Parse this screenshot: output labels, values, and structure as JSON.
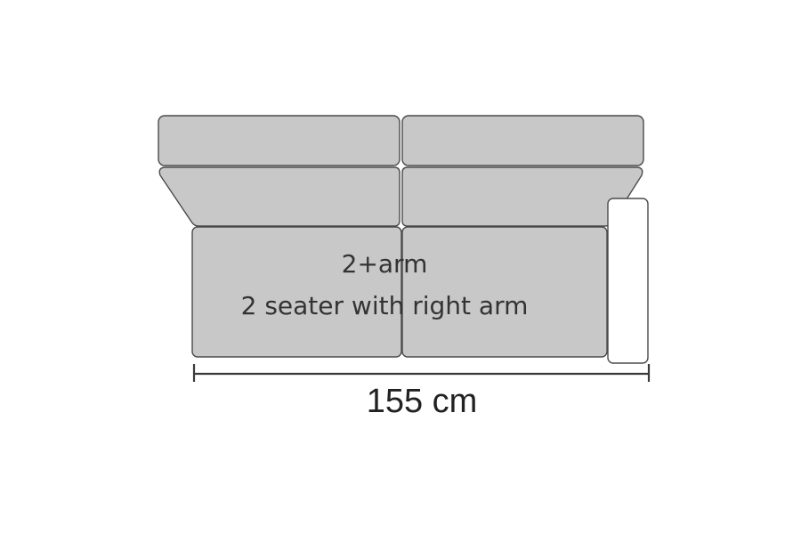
{
  "diagram": {
    "model_code": "2+arm",
    "model_description": "2 seater with right arm",
    "dimension": "155 cm",
    "colors": {
      "cushion_fill": "#c8c8c8",
      "outline": "#4a4a4a",
      "arm_fill": "#ffffff",
      "background": "#ffffff"
    }
  }
}
